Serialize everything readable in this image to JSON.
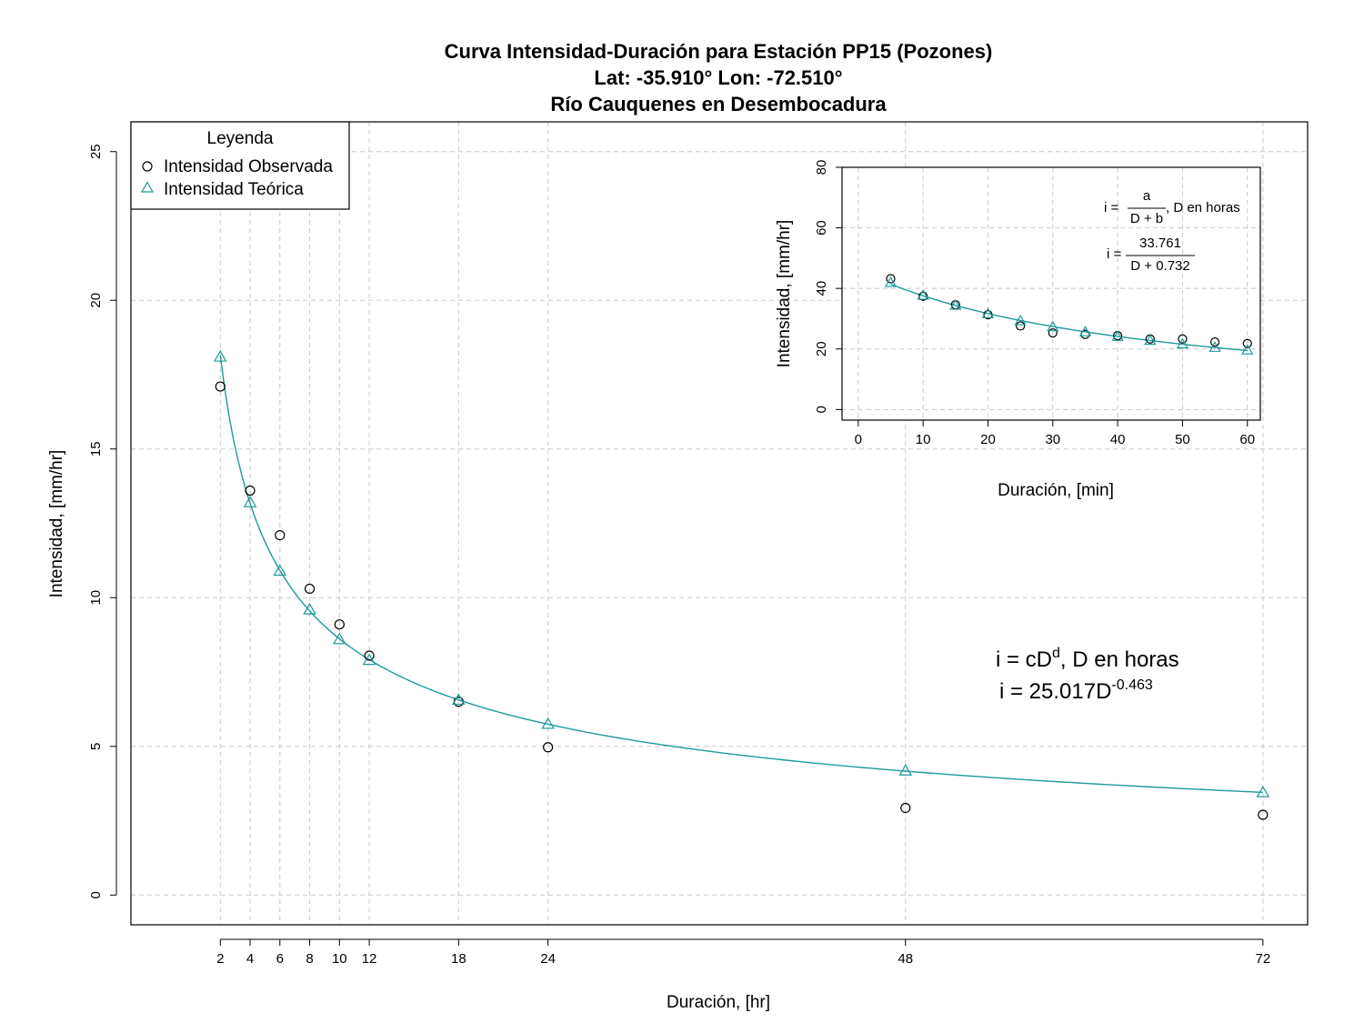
{
  "colors": {
    "observed": "#000000",
    "theoretical": "#1f9a9a",
    "grid": "#c8c8c8"
  },
  "chart_data": [
    {
      "type": "scatter",
      "title": [
        "Curva Intensidad-Duración para Estación PP15 (Pozones)",
        "Lat: -35.910° Lon: -72.510°",
        "Río Cauquenes en Desembocadura"
      ],
      "xlabel": "Duración, [hr]",
      "ylabel": "Intensidad, [mm/hr]",
      "xlim": [
        -4,
        75
      ],
      "ylim": [
        -1,
        26
      ],
      "x_ticks": [
        2,
        4,
        6,
        8,
        10,
        12,
        18,
        24,
        48,
        72
      ],
      "y_ticks": [
        0,
        5,
        10,
        15,
        20,
        25
      ],
      "grid": true,
      "legend": {
        "title": "Leyenda",
        "position": "top-left"
      },
      "series": [
        {
          "name": "Intensidad Observada",
          "marker": "circle",
          "x": [
            2,
            4,
            6,
            8,
            10,
            12,
            18,
            24,
            48,
            72
          ],
          "y": [
            17.1,
            13.6,
            12.1,
            10.3,
            9.1,
            8.05,
            6.5,
            4.97,
            2.93,
            2.7
          ]
        },
        {
          "name": "Intensidad Teórica",
          "marker": "triangle",
          "x": [
            2,
            4,
            6,
            8,
            10,
            12,
            18,
            24,
            48,
            72
          ],
          "y": [
            18.1,
            13.2,
            10.9,
            9.6,
            8.6,
            7.9,
            6.56,
            5.75,
            4.18,
            3.45
          ]
        }
      ],
      "fit_curve": {
        "formula": "c*D^d",
        "c": 25.017,
        "d": -0.463,
        "x_range": [
          2,
          72
        ]
      },
      "equation": {
        "line1": "i = cD",
        "line1_sup": "d",
        "line1_rest": ", D en horas",
        "line2": "i = 25.017D",
        "line2_sup": "-0.463"
      }
    },
    {
      "type": "scatter",
      "xlabel": "Duración, [min]",
      "ylabel": "Intensidad, [mm/hr]",
      "xlim": [
        -2.5,
        62
      ],
      "ylim": [
        -3.5,
        80
      ],
      "x_ticks": [
        0,
        10,
        20,
        30,
        40,
        50,
        60
      ],
      "y_ticks": [
        0,
        20,
        40,
        60,
        80
      ],
      "grid": true,
      "series": [
        {
          "name": "Intensidad Observada",
          "marker": "circle",
          "x": [
            5,
            10,
            15,
            20,
            25,
            30,
            35,
            40,
            45,
            50,
            55,
            60
          ],
          "y": [
            43.2,
            37.4,
            34.6,
            31.3,
            27.6,
            25.3,
            24.8,
            24.4,
            23.3,
            23.3,
            22.3,
            21.8
          ]
        },
        {
          "name": "Intensidad Teórica",
          "marker": "triangle",
          "x": [
            5,
            10,
            15,
            20,
            25,
            30,
            35,
            40,
            45,
            50,
            55,
            60
          ],
          "y": [
            41.9,
            37.7,
            34.4,
            31.6,
            29.3,
            27.3,
            25.6,
            24.1,
            22.8,
            21.6,
            20.5,
            19.6
          ]
        },
        {
          "name": "fit",
          "formula": "a/(D+b)",
          "a": 33.761,
          "b": 0.732
        }
      ],
      "equation": {
        "line1_prefix": "i =",
        "line1_num": "a",
        "line1_den": "D + b",
        "line1_suffix": ", D en horas",
        "line2_prefix": "i =",
        "line2_num": "33.761",
        "line2_den": "D + 0.732"
      }
    }
  ]
}
